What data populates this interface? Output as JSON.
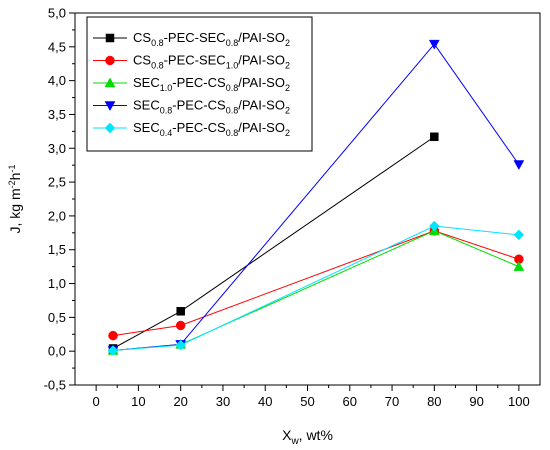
{
  "chart_data": {
    "type": "line",
    "xlabel": {
      "main": "X",
      "sub": "w",
      "rest": ", wt%"
    },
    "ylabel": {
      "main": "J, kg m",
      "sup1": "-2",
      "mid": "h",
      "sup2": "-1"
    },
    "xlim": [
      -5,
      105
    ],
    "ylim": [
      -0.5,
      5.0
    ],
    "xticks": [
      0,
      10,
      20,
      30,
      40,
      50,
      60,
      70,
      80,
      90,
      100
    ],
    "yticks": [
      -0.5,
      0.0,
      0.5,
      1.0,
      1.5,
      2.0,
      2.5,
      3.0,
      3.5,
      4.0,
      4.5,
      5.0
    ],
    "ytick_labels": [
      "-0,5",
      "0,0",
      "0,5",
      "1,0",
      "1,5",
      "2,0",
      "2,5",
      "3,0",
      "3,5",
      "4,0",
      "4,5",
      "5,0"
    ],
    "xtick_labels": [
      "0",
      "10",
      "20",
      "30",
      "40",
      "50",
      "60",
      "70",
      "80",
      "90",
      "100"
    ],
    "legend_placement": "top-left",
    "grid": false,
    "series": [
      {
        "name_parts": [
          [
            "CS",
            ""
          ],
          [
            "0.8",
            "sub"
          ],
          [
            "-PEC-SEC",
            ""
          ],
          [
            "0.8",
            "sub"
          ],
          [
            "/PAI-SO",
            ""
          ],
          [
            "2",
            "sub"
          ]
        ],
        "color": "#000000",
        "marker": "square",
        "x": [
          4,
          20,
          80
        ],
        "y": [
          0.04,
          0.59,
          3.17
        ]
      },
      {
        "name_parts": [
          [
            "CS",
            ""
          ],
          [
            "0.8",
            "sub"
          ],
          [
            "-PEC-SEC",
            ""
          ],
          [
            "1.0",
            "sub"
          ],
          [
            "/PAI-SO",
            ""
          ],
          [
            "2",
            "sub"
          ]
        ],
        "color": "#ff0000",
        "marker": "circle",
        "x": [
          4,
          20,
          80,
          100
        ],
        "y": [
          0.23,
          0.38,
          1.78,
          1.36
        ]
      },
      {
        "name_parts": [
          [
            "SEC",
            ""
          ],
          [
            "1.0",
            "sub"
          ],
          [
            "-PEC-CS",
            ""
          ],
          [
            "0.8",
            "sub"
          ],
          [
            "/PAI-SO",
            ""
          ],
          [
            "2",
            "sub"
          ]
        ],
        "color": "#00dd00",
        "marker": "triangle-up",
        "x": [
          4,
          20,
          80,
          100
        ],
        "y": [
          0.01,
          0.1,
          1.78,
          1.25
        ]
      },
      {
        "name_parts": [
          [
            "SEC",
            ""
          ],
          [
            "0.8",
            "sub"
          ],
          [
            "-PEC-CS",
            ""
          ],
          [
            "0.8",
            "sub"
          ],
          [
            "/PAI-SO",
            ""
          ],
          [
            "2",
            "sub"
          ]
        ],
        "color": "#0000ff",
        "marker": "triangle-down",
        "x": [
          4,
          20,
          80,
          100
        ],
        "y": [
          0.01,
          0.1,
          4.54,
          2.76
        ]
      },
      {
        "name_parts": [
          [
            "SEC",
            ""
          ],
          [
            "0.4",
            "sub"
          ],
          [
            "-PEC-CS",
            ""
          ],
          [
            "0.8",
            "sub"
          ],
          [
            "/PAI-SO",
            ""
          ],
          [
            "2",
            "sub"
          ]
        ],
        "color": "#00e5ff",
        "marker": "diamond",
        "x": [
          4,
          20,
          80,
          100
        ],
        "y": [
          0.01,
          0.09,
          1.85,
          1.72
        ]
      }
    ]
  }
}
